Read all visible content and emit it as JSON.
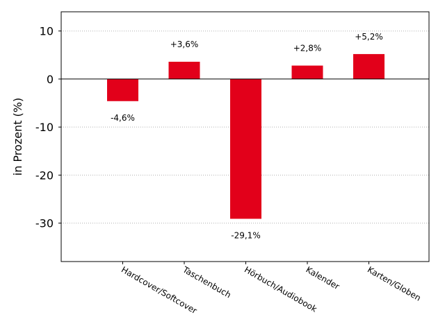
{
  "chart_data": {
    "type": "bar",
    "categories": [
      "Hardcover/Softcover",
      "Taschenbuch",
      "Hörbuch/Audiobook",
      "Kalender",
      "Karten/Globen"
    ],
    "values": [
      -4.6,
      3.6,
      -29.1,
      2.8,
      5.2
    ],
    "data_labels": [
      "-4,6%",
      "+3,6%",
      "-29,1%",
      "+2,8%",
      "+5,2%"
    ],
    "ylabel": "in Prozent (%)",
    "ylim": [
      -38,
      14
    ],
    "yticks": [
      10,
      0,
      -10,
      -20,
      -30
    ],
    "ytick_labels": [
      "10",
      "0",
      "-10",
      "-20",
      "-30"
    ],
    "grid": "horizontal-dotted",
    "bar_color": "#e2001a"
  }
}
